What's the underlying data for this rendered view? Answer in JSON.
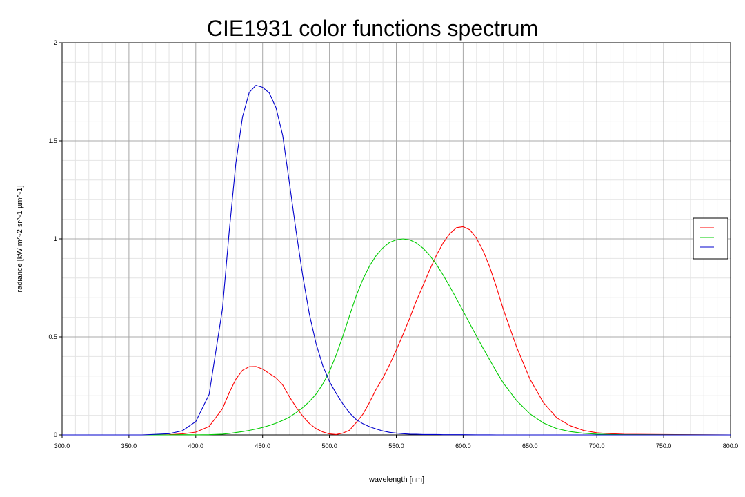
{
  "chart_data": {
    "type": "line",
    "title": "CIE1931 color functions spectrum",
    "xlabel": "wavelength [nm]",
    "ylabel": "radiance [kW m^-2 sr^-1 µm^-1]",
    "xlim": [
      300,
      800
    ],
    "ylim": [
      0,
      2
    ],
    "x_ticks": [
      "300.0",
      "350.0",
      "400.0",
      "450.0",
      "500.0",
      "550.0",
      "600.0",
      "650.0",
      "700.0",
      "750.0",
      "800.0"
    ],
    "y_ticks": [
      "0",
      "0.5",
      "1",
      "1.5",
      "2"
    ],
    "grid": true,
    "legend": "right",
    "x": [
      300,
      360,
      380,
      390,
      400,
      410,
      420,
      425,
      430,
      435,
      440,
      445,
      450,
      455,
      460,
      465,
      470,
      475,
      480,
      485,
      490,
      495,
      500,
      505,
      510,
      515,
      520,
      525,
      530,
      535,
      540,
      545,
      550,
      555,
      560,
      565,
      570,
      575,
      580,
      585,
      590,
      595,
      600,
      605,
      610,
      615,
      620,
      625,
      630,
      640,
      650,
      660,
      670,
      680,
      690,
      700,
      710,
      720,
      800
    ],
    "series": [
      {
        "color": "#ff0000",
        "values": [
          0,
          0,
          0.001,
          0.005,
          0.014,
          0.043,
          0.134,
          0.215,
          0.284,
          0.33,
          0.348,
          0.349,
          0.336,
          0.313,
          0.291,
          0.255,
          0.195,
          0.142,
          0.096,
          0.058,
          0.032,
          0.015,
          0.005,
          0.002,
          0.009,
          0.024,
          0.063,
          0.105,
          0.166,
          0.234,
          0.29,
          0.358,
          0.433,
          0.512,
          0.595,
          0.684,
          0.762,
          0.843,
          0.916,
          0.979,
          1.026,
          1.057,
          1.062,
          1.046,
          1.003,
          0.938,
          0.854,
          0.751,
          0.642,
          0.448,
          0.284,
          0.165,
          0.087,
          0.047,
          0.023,
          0.011,
          0.006,
          0.003,
          0
        ]
      },
      {
        "color": "#00cc00",
        "values": [
          0,
          0,
          0,
          0.001,
          0.0004,
          0.0012,
          0.004,
          0.007,
          0.012,
          0.017,
          0.023,
          0.03,
          0.038,
          0.048,
          0.06,
          0.074,
          0.091,
          0.113,
          0.139,
          0.17,
          0.208,
          0.259,
          0.323,
          0.407,
          0.503,
          0.608,
          0.71,
          0.793,
          0.862,
          0.915,
          0.954,
          0.982,
          0.995,
          1.0,
          0.995,
          0.979,
          0.952,
          0.915,
          0.87,
          0.816,
          0.757,
          0.695,
          0.631,
          0.567,
          0.503,
          0.441,
          0.381,
          0.321,
          0.265,
          0.175,
          0.107,
          0.061,
          0.032,
          0.017,
          0.008,
          0.004,
          0.002,
          0.001,
          0
        ]
      },
      {
        "color": "#0000cc",
        "values": [
          0,
          0,
          0.006,
          0.021,
          0.068,
          0.207,
          0.646,
          1.039,
          1.386,
          1.623,
          1.747,
          1.783,
          1.773,
          1.744,
          1.669,
          1.528,
          1.287,
          1.042,
          0.813,
          0.616,
          0.465,
          0.353,
          0.272,
          0.212,
          0.158,
          0.112,
          0.078,
          0.057,
          0.042,
          0.03,
          0.02,
          0.013,
          0.009,
          0.006,
          0.004,
          0.003,
          0.002,
          0.002,
          0.002,
          0.001,
          0.001,
          0.001,
          0.001,
          0.0008,
          0.0003,
          0.0002,
          0.0002,
          0.0001,
          0,
          0,
          0,
          0,
          0,
          0,
          0,
          0,
          0,
          0,
          0
        ]
      }
    ]
  }
}
